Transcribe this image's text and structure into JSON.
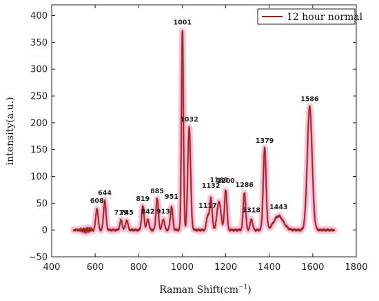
{
  "chart_data": {
    "type": "line",
    "xlabel_main": "Raman Shift(cm",
    "xlabel_sup": "−1",
    "xlabel_end": ")",
    "ylabel": "intensity(a.u.)",
    "xlim": [
      400,
      1800
    ],
    "ylim": [
      -50,
      420
    ],
    "x_ticks": [
      400,
      600,
      800,
      1000,
      1200,
      1400,
      1600,
      1800
    ],
    "y_ticks": [
      -50,
      0,
      50,
      100,
      150,
      200,
      250,
      300,
      350,
      400
    ],
    "x_tick_labels": [
      "400",
      "600",
      "800",
      "1000",
      "1200",
      "1400",
      "1600",
      "1800"
    ],
    "y_tick_labels": [
      "−50",
      "0",
      "50",
      "100",
      "150",
      "200",
      "250",
      "300",
      "350",
      "400"
    ],
    "legend": {
      "position": "top-right",
      "entries": [
        "12 hour normal"
      ]
    },
    "colors": {
      "line": "#8b2a12",
      "halo": "#f3bcd6",
      "fill": "#e03060"
    },
    "series": [
      {
        "name": "12 hour normal",
        "baseline": 0,
        "x_range": [
          500,
          1700
        ],
        "peaks": [
          {
            "x": 608,
            "y": 40,
            "label": "608"
          },
          {
            "x": 644,
            "y": 55,
            "label": "644"
          },
          {
            "x": 719,
            "y": 18,
            "label": "719"
          },
          {
            "x": 745,
            "y": 18,
            "label": "745"
          },
          {
            "x": 819,
            "y": 44,
            "label": "819"
          },
          {
            "x": 842,
            "y": 20,
            "label": "842"
          },
          {
            "x": 885,
            "y": 58,
            "label": "885"
          },
          {
            "x": 913,
            "y": 20,
            "label": "913"
          },
          {
            "x": 951,
            "y": 43,
            "label": "951"
          },
          {
            "x": 1001,
            "y": 373,
            "label": "1001"
          },
          {
            "x": 1032,
            "y": 192,
            "label": "1032"
          },
          {
            "x": 1117,
            "y": 27,
            "label": "1117"
          },
          {
            "x": 1132,
            "y": 60,
            "label": "1132"
          },
          {
            "x": 1169,
            "y": 53,
            "label": "1169"
          },
          {
            "x": 1200,
            "y": 75,
            "label": "1200"
          },
          {
            "x": 1286,
            "y": 70,
            "label": "1286"
          },
          {
            "x": 1318,
            "y": 20,
            "label": "1318"
          },
          {
            "x": 1379,
            "y": 152,
            "label": "1379"
          },
          {
            "x": 1443,
            "y": 26,
            "label": "1443"
          },
          {
            "x": 1586,
            "y": 230,
            "label": "1586"
          }
        ]
      }
    ]
  }
}
